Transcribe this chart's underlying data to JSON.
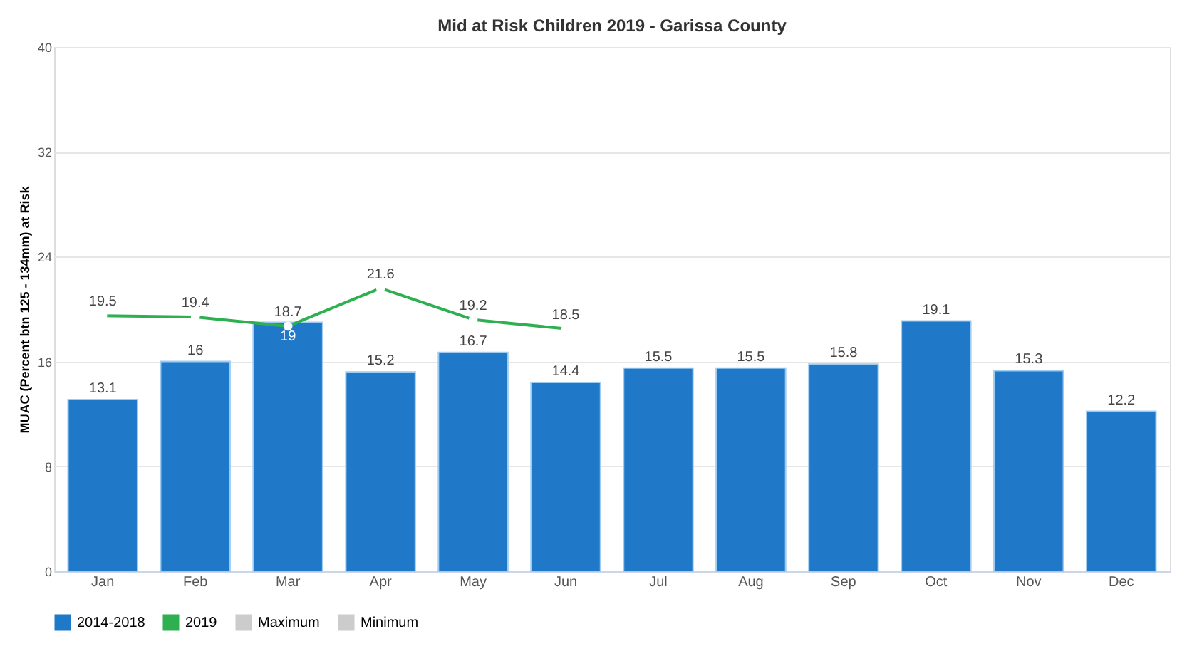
{
  "chart_data": {
    "type": "bar",
    "title": "Mid at Risk Children 2019 - Garissa County",
    "ylabel": "MUAC (Percent btn 125 - 134mm) at Risk",
    "categories": [
      "Jan",
      "Feb",
      "Mar",
      "Apr",
      "May",
      "Jun",
      "Jul",
      "Aug",
      "Sep",
      "Oct",
      "Nov",
      "Dec"
    ],
    "series": [
      {
        "name": "2014-2018",
        "color": "#1f78c8",
        "values": [
          13.1,
          16,
          19,
          15.2,
          16.7,
          14.4,
          15.5,
          15.5,
          15.8,
          19.1,
          15.3,
          12.2
        ]
      },
      {
        "name": "2019",
        "type": "line",
        "color": "#2eb050",
        "values": [
          19.5,
          19.4,
          18.7,
          21.6,
          19.2,
          18.5,
          null,
          null,
          null,
          null,
          null,
          null
        ]
      },
      {
        "name": "Maximum",
        "type": "line",
        "color": "#cccccc",
        "values": [
          null,
          null,
          null,
          null,
          null,
          null,
          null,
          null,
          null,
          null,
          null,
          null
        ]
      },
      {
        "name": "Minimum",
        "type": "line",
        "color": "#cccccc",
        "values": [
          null,
          null,
          null,
          null,
          null,
          null,
          null,
          null,
          null,
          null,
          null,
          null
        ]
      }
    ],
    "ylim": [
      0,
      40
    ],
    "yticks": [
      0,
      8,
      16,
      24,
      32,
      40
    ],
    "grid": "y",
    "legend": "bottom",
    "marker": "circle",
    "data_labels": true
  }
}
